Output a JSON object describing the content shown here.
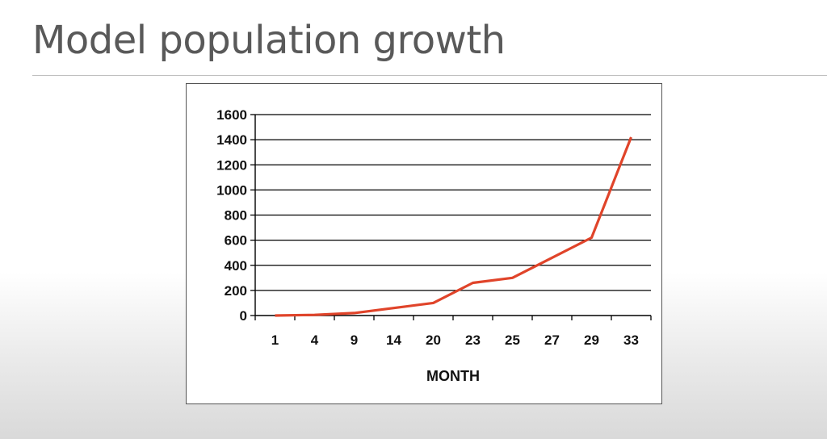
{
  "slide": {
    "title": "Model population growth"
  },
  "colors": {
    "series_line": "#e0442a",
    "gridline": "#000000",
    "title_text": "#595959"
  },
  "chart_data": {
    "type": "line",
    "title": "",
    "xlabel": "MONTH",
    "ylabel": "",
    "categories": [
      "1",
      "4",
      "9",
      "14",
      "20",
      "23",
      "25",
      "27",
      "29",
      "33"
    ],
    "series": [
      {
        "values": [
          0,
          5,
          20,
          60,
          100,
          260,
          300,
          460,
          620,
          1420
        ]
      }
    ],
    "ylim": [
      0,
      1600
    ],
    "yticks": [
      "0",
      "200",
      "400",
      "600",
      "800",
      "1000",
      "1200",
      "1400",
      "1600"
    ],
    "grid": true,
    "legend": "none"
  }
}
